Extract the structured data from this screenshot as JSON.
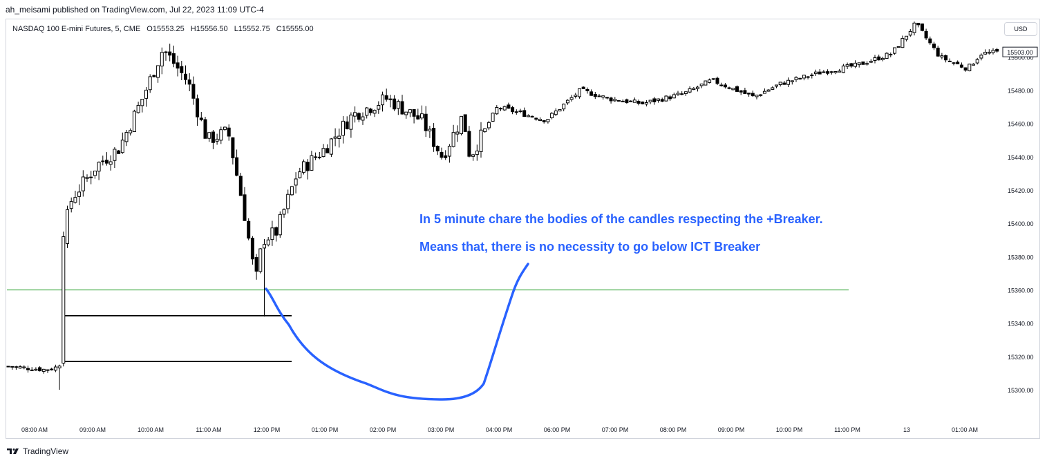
{
  "publish": {
    "text": "ah_meisami published on TradingView.com, Jul 22, 2023 11:09 UTC-4"
  },
  "symbol": {
    "name": "NASDAQ 100 E-mini Futures, 5, CME",
    "open": "O15553.25",
    "high": "H15556.50",
    "low": "L15552.75",
    "close": "C15555.00"
  },
  "currency": "USD",
  "footer": {
    "brand": "TradingView",
    "logo_icon": "tradingview-logo-icon"
  },
  "annotations": [
    "In 5 minute chare the bodies of the candles respecting the +Breaker.",
    "Means that, there is no necessity to go below ICT Breaker"
  ],
  "colors": {
    "bull_body": "#ffffff",
    "bear_body": "#000000",
    "wick": "#000000",
    "level_line": "#4caf50",
    "annotation": "#2962ff",
    "path": "#2962ff",
    "last_price_bg": "#ffffff"
  },
  "chart_data": {
    "type": "candlestick",
    "title": "",
    "ylim": [
      15283,
      15534
    ],
    "yticks": [
      15300,
      15320,
      15340,
      15360,
      15380,
      15400,
      15420,
      15440,
      15460,
      15480,
      15500
    ],
    "ytick_labels": [
      "15300.00",
      "15320.00",
      "15340.00",
      "15360.00",
      "15380.00",
      "15400.00",
      "15420.00",
      "15440.00",
      "15460.00",
      "15480.00",
      "15500.00"
    ],
    "xtick_labels": [
      "08:00 AM",
      "09:00 AM",
      "10:00 AM",
      "11:00 AM",
      "12:00 PM",
      "01:00 PM",
      "02:00 PM",
      "03:00 PM",
      "04:00 PM",
      "06:00 PM",
      "07:00 PM",
      "08:00 PM",
      "09:00 PM",
      "10:00 PM",
      "11:00 PM",
      "13",
      "01:00 AM"
    ],
    "last_price": "15503.00",
    "horizontal_levels": [
      {
        "name": "green-level",
        "value": 15360.0,
        "color": "#4caf50"
      },
      {
        "name": "breaker-high",
        "value": 15344.5,
        "color": "#000000"
      },
      {
        "name": "breaker-low",
        "value": 15317.0,
        "color": "#000000"
      }
    ],
    "anchors": [
      [
        15312,
        15314,
        15311
      ],
      [
        15313,
        15312,
        15310
      ],
      [
        15314,
        15314,
        15311
      ],
      [
        15316,
        15395,
        15385
      ],
      [
        15395,
        15415,
        15405
      ],
      [
        15405,
        15435,
        15425
      ],
      [
        15410,
        15445,
        15435
      ],
      [
        15435,
        15475,
        15465
      ],
      [
        15470,
        15505,
        15495
      ],
      [
        15500,
        15485,
        15492
      ],
      [
        15495,
        15450,
        15470
      ],
      [
        15480,
        15455,
        15460
      ],
      [
        15465,
        15410,
        15430
      ],
      [
        15420,
        15365,
        15400
      ],
      [
        15370,
        15390,
        15385
      ],
      [
        15380,
        15395,
        15390
      ],
      [
        15385,
        15430,
        15400
      ],
      [
        15420,
        15445,
        15430
      ],
      [
        15440,
        15465,
        15440
      ],
      [
        15460,
        15475,
        15455
      ],
      [
        15475,
        15462,
        15470
      ],
      [
        15450,
        15440,
        15448
      ],
      [
        15455,
        15465,
        15460
      ],
      [
        15445,
        15440,
        15465
      ],
      [
        15460,
        15470,
        15462
      ],
      [
        15465,
        15462,
        15466
      ],
      [
        15470,
        15480,
        15475
      ],
      [
        15482,
        15475,
        15476
      ],
      [
        15473,
        15472,
        15474
      ],
      [
        15475,
        15478,
        15474
      ],
      [
        15484,
        15486,
        15484
      ],
      [
        15480,
        15476,
        15480
      ],
      [
        15478,
        15484,
        15482
      ],
      [
        15489,
        15491,
        15487
      ],
      [
        15493,
        15495,
        15490
      ],
      [
        15498,
        15502,
        15499
      ],
      [
        15500,
        15520,
        15512
      ],
      [
        15510,
        15500,
        15500
      ],
      [
        15492,
        15493,
        15497
      ],
      [
        15500,
        15502,
        15500
      ],
      [
        15502,
        15503,
        15502
      ]
    ]
  }
}
